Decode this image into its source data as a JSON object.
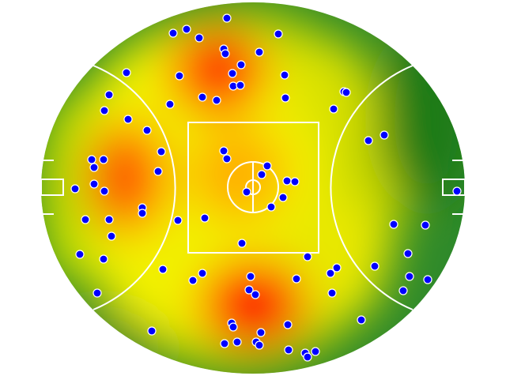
{
  "chart_data": {
    "type": "scatter",
    "color": "#0000ff",
    "xlim": [
      -268,
      268
    ],
    "ylim": [
      -235,
      235
    ],
    "x": [
      -33,
      -101,
      -84,
      -68,
      32,
      -37,
      -35,
      8,
      -15,
      -26,
      -160,
      -93,
      40,
      -25,
      -16,
      -182,
      -64,
      -46,
      -105,
      41,
      115,
      118,
      102,
      -188,
      -158,
      -134,
      146,
      166,
      -116,
      -37,
      -33,
      -204,
      -189,
      -201,
      18,
      11,
      -120,
      43,
      53,
      -225,
      -201,
      -188,
      -8,
      38,
      258,
      23,
      -140,
      -140,
      -212,
      -182,
      -95,
      -61,
      178,
      218,
      -179,
      -14,
      -219,
      -189,
      69,
      196,
      -114,
      -64,
      -76,
      106,
      98,
      154,
      -3,
      55,
      198,
      221,
      -5,
      3,
      100,
      190,
      -197,
      137,
      -128,
      -27,
      -25,
      44,
      10,
      -36,
      -20,
      4,
      8,
      45,
      66,
      69,
      79
    ],
    "y": [
      215,
      196,
      201,
      190,
      195,
      176,
      170,
      172,
      156,
      145,
      146,
      142,
      143,
      129,
      130,
      118,
      115,
      111,
      106,
      114,
      122,
      121,
      100,
      98,
      87,
      73,
      60,
      67,
      46,
      47,
      37,
      36,
      36,
      26,
      28,
      17,
      21,
      9,
      8,
      -1,
      5,
      -4,
      -5,
      -12,
      -4,
      -24,
      -25,
      -32,
      -40,
      -40,
      -41,
      -38,
      -46,
      -47,
      -61,
      -70,
      -84,
      -90,
      -87,
      -83,
      -103,
      -108,
      -117,
      -101,
      -108,
      -99,
      -112,
      -115,
      -112,
      -116,
      -129,
      -135,
      -133,
      -130,
      -133,
      -167,
      -181,
      -171,
      -176,
      -173,
      -183,
      -197,
      -195,
      -195,
      -199,
      -205,
      -209,
      -214,
      -207
    ]
  }
}
